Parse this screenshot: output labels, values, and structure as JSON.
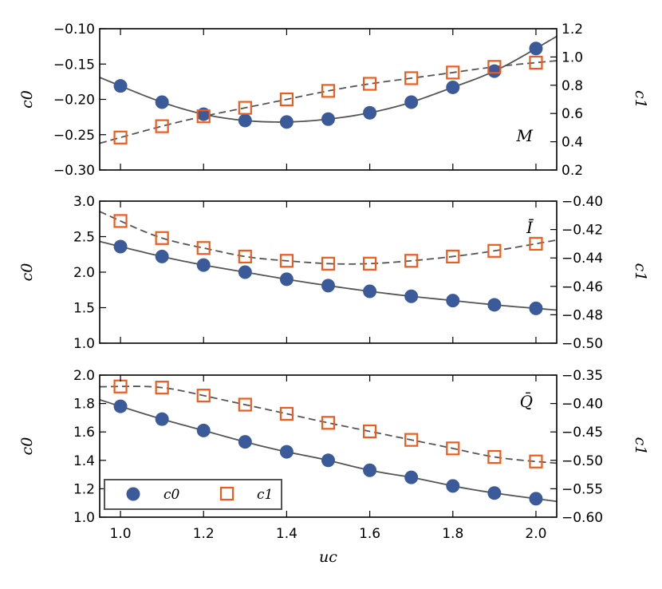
{
  "colors": {
    "c0": "#3b5a9a",
    "c1": "#ef5b1a",
    "curve": "#555555",
    "frame": "#000000"
  },
  "chart_data": [
    {
      "type": "scatter",
      "panel_label": "M",
      "x_ticks": [
        1.0,
        1.2,
        1.4,
        1.6,
        1.8,
        2.0
      ],
      "xlim": [
        0.95,
        2.05
      ],
      "left_axis": {
        "label": "c0",
        "ylim": [
          -0.3,
          -0.1
        ],
        "ticks": [
          -0.3,
          -0.25,
          -0.2,
          -0.15,
          -0.1
        ],
        "tick_labels": [
          "−0.30",
          "−0.25",
          "−0.20",
          "−0.15",
          "−0.10"
        ]
      },
      "right_axis": {
        "label": "c1",
        "ylim": [
          0.2,
          1.2
        ],
        "ticks": [
          0.2,
          0.4,
          0.6,
          0.8,
          1.0,
          1.2
        ],
        "tick_labels": [
          "0.2",
          "0.4",
          "0.6",
          "0.8",
          "1.0",
          "1.2"
        ]
      },
      "series": [
        {
          "name": "c0",
          "axis": "left",
          "marker": "circle",
          "fit": "solid",
          "x": [
            1.0,
            1.1,
            1.2,
            1.3,
            1.4,
            1.5,
            1.6,
            1.7,
            1.8,
            1.9,
            2.0
          ],
          "y": [
            -0.181,
            -0.204,
            -0.221,
            -0.23,
            -0.232,
            -0.228,
            -0.219,
            -0.204,
            -0.183,
            -0.16,
            -0.128
          ]
        },
        {
          "name": "c1",
          "axis": "right",
          "marker": "square",
          "fit": "dashed",
          "x": [
            1.0,
            1.1,
            1.2,
            1.3,
            1.4,
            1.5,
            1.6,
            1.7,
            1.8,
            1.9,
            2.0
          ],
          "y": [
            0.43,
            0.51,
            0.58,
            0.64,
            0.7,
            0.76,
            0.81,
            0.85,
            0.89,
            0.93,
            0.96
          ]
        }
      ]
    },
    {
      "type": "scatter",
      "panel_label": "Ī",
      "x_ticks": [
        1.0,
        1.2,
        1.4,
        1.6,
        1.8,
        2.0
      ],
      "xlim": [
        0.95,
        2.05
      ],
      "left_axis": {
        "label": "c0",
        "ylim": [
          1.0,
          3.0
        ],
        "ticks": [
          1.0,
          1.5,
          2.0,
          2.5,
          3.0
        ],
        "tick_labels": [
          "1.0",
          "1.5",
          "2.0",
          "2.5",
          "3.0"
        ]
      },
      "right_axis": {
        "label": "c1",
        "ylim": [
          -0.5,
          -0.4
        ],
        "ticks": [
          -0.5,
          -0.48,
          -0.46,
          -0.44,
          -0.42,
          -0.4
        ],
        "tick_labels": [
          "−0.50",
          "−0.48",
          "−0.46",
          "−0.44",
          "−0.42",
          "−0.40"
        ]
      },
      "series": [
        {
          "name": "c0",
          "axis": "left",
          "marker": "circle",
          "fit": "solid",
          "x": [
            1.0,
            1.1,
            1.2,
            1.3,
            1.4,
            1.5,
            1.6,
            1.7,
            1.8,
            1.9,
            2.0
          ],
          "y": [
            2.36,
            2.22,
            2.1,
            2.0,
            1.9,
            1.81,
            1.73,
            1.66,
            1.6,
            1.54,
            1.49
          ]
        },
        {
          "name": "c1",
          "axis": "right",
          "marker": "square",
          "fit": "dashed",
          "x": [
            1.0,
            1.1,
            1.2,
            1.3,
            1.4,
            1.5,
            1.6,
            1.7,
            1.8,
            1.9,
            2.0
          ],
          "y": [
            -0.414,
            -0.426,
            -0.433,
            -0.439,
            -0.442,
            -0.444,
            -0.444,
            -0.442,
            -0.439,
            -0.435,
            -0.43
          ]
        }
      ]
    },
    {
      "type": "scatter",
      "panel_label": "Q̄",
      "x_ticks": [
        1.0,
        1.2,
        1.4,
        1.6,
        1.8,
        2.0
      ],
      "x_tick_labels": [
        "1.0",
        "1.2",
        "1.4",
        "1.6",
        "1.8",
        "2.0"
      ],
      "xlim": [
        0.95,
        2.05
      ],
      "xlabel": "uc",
      "left_axis": {
        "label": "c0",
        "ylim": [
          1.0,
          2.0
        ],
        "ticks": [
          1.0,
          1.2,
          1.4,
          1.6,
          1.8,
          2.0
        ],
        "tick_labels": [
          "1.0",
          "1.2",
          "1.4",
          "1.6",
          "1.8",
          "2.0"
        ]
      },
      "right_axis": {
        "label": "c1",
        "ylim": [
          -0.6,
          -0.35
        ],
        "ticks": [
          -0.6,
          -0.55,
          -0.5,
          -0.45,
          -0.4,
          -0.35
        ],
        "tick_labels": [
          "−0.60",
          "−0.55",
          "−0.50",
          "−0.45",
          "−0.40",
          "−0.35"
        ]
      },
      "series": [
        {
          "name": "c0",
          "axis": "left",
          "marker": "circle",
          "fit": "solid",
          "x": [
            1.0,
            1.1,
            1.2,
            1.3,
            1.4,
            1.5,
            1.6,
            1.7,
            1.8,
            1.9,
            2.0
          ],
          "y": [
            1.78,
            1.69,
            1.61,
            1.53,
            1.46,
            1.4,
            1.33,
            1.28,
            1.22,
            1.17,
            1.13
          ]
        },
        {
          "name": "c1",
          "axis": "right",
          "marker": "square",
          "fit": "dashed",
          "x": [
            1.0,
            1.1,
            1.2,
            1.3,
            1.4,
            1.5,
            1.6,
            1.7,
            1.8,
            1.9,
            2.0
          ],
          "y": [
            -0.37,
            -0.372,
            -0.386,
            -0.402,
            -0.418,
            -0.434,
            -0.449,
            -0.464,
            -0.479,
            -0.494,
            -0.502
          ]
        }
      ]
    }
  ],
  "legend": {
    "placement": "lower-left",
    "entries": [
      {
        "label": "c0",
        "marker": "circle"
      },
      {
        "label": "c1",
        "marker": "square"
      }
    ]
  }
}
